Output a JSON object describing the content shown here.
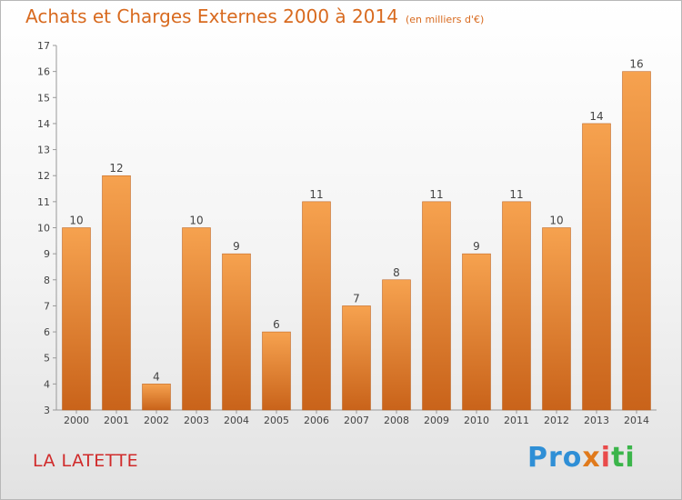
{
  "header": {
    "title": "Achats et Charges Externes 2000 à 2014",
    "subtitle": "(en milliers d'€)"
  },
  "footer": {
    "town": "LA LATETTE",
    "logo": "Proxiti"
  },
  "colors": {
    "bar_light": "#f6a24f",
    "bar_dark": "#c9631a",
    "title": "#d86a1f",
    "town": "#d02a2a"
  },
  "chart_data": {
    "type": "bar",
    "title": "Achats et Charges Externes 2000 à 2014",
    "subtitle": "(en milliers d'€)",
    "xlabel": "",
    "ylabel": "",
    "categories": [
      "2000",
      "2001",
      "2002",
      "2003",
      "2004",
      "2005",
      "2006",
      "2007",
      "2008",
      "2009",
      "2010",
      "2011",
      "2012",
      "2013",
      "2014"
    ],
    "values": [
      10,
      12,
      4,
      10,
      9,
      6,
      11,
      7,
      8,
      11,
      9,
      11,
      10,
      14,
      16
    ],
    "ylim": [
      3,
      17
    ],
    "yticks": [
      3,
      4,
      5,
      6,
      7,
      8,
      9,
      10,
      11,
      12,
      13,
      14,
      15,
      16,
      17
    ],
    "grid": false,
    "data_labels": true
  }
}
